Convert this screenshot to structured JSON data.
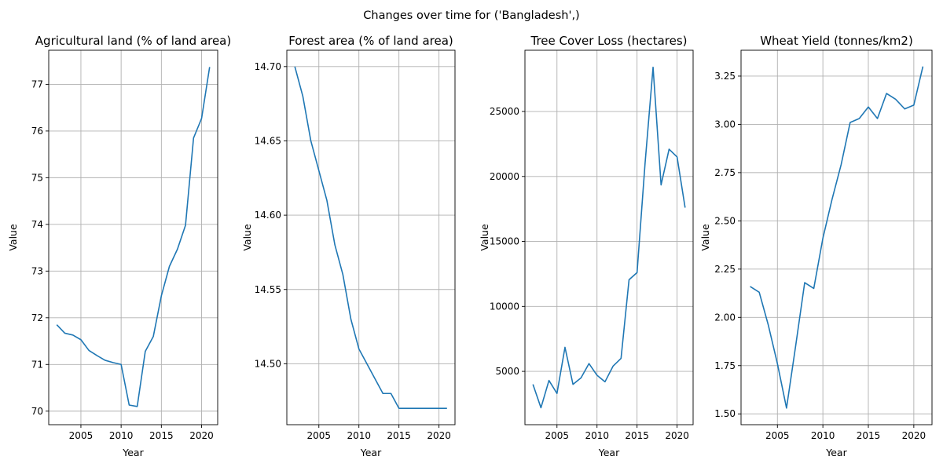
{
  "suptitle": "Changes over time for ('Bangladesh',)",
  "colors": {
    "series": "#1f77b4",
    "grid": "#b0b0b0"
  },
  "chart_data": [
    {
      "type": "line",
      "title": "Agricultural land (% of land area)",
      "xlabel": "Year",
      "ylabel": "Value",
      "grid": true,
      "xlim": [
        2001,
        2022
      ],
      "ylim": [
        69.71,
        77.73
      ],
      "xticks": [
        2005,
        2010,
        2015,
        2020
      ],
      "yticks": [
        70,
        71,
        72,
        73,
        74,
        75,
        76,
        77
      ],
      "yticklabels": [
        "70",
        "71",
        "72",
        "73",
        "74",
        "75",
        "76",
        "77"
      ],
      "series": [
        {
          "x": [
            2002,
            2003,
            2004,
            2005,
            2006,
            2007,
            2008,
            2009,
            2010,
            2011,
            2012,
            2013,
            2014,
            2015,
            2016,
            2017,
            2018,
            2019,
            2020,
            2021
          ],
          "values": [
            71.85,
            71.67,
            71.63,
            71.53,
            71.3,
            71.19,
            71.09,
            71.04,
            71.0,
            70.13,
            70.1,
            71.28,
            71.6,
            72.47,
            73.1,
            73.47,
            73.98,
            75.85,
            76.27,
            77.37
          ]
        }
      ]
    },
    {
      "type": "line",
      "title": "Forest area (% of land area)",
      "xlabel": "Year",
      "ylabel": "Value",
      "grid": true,
      "xlim": [
        2001,
        2022
      ],
      "ylim": [
        14.459,
        14.711
      ],
      "xticks": [
        2005,
        2010,
        2015,
        2020
      ],
      "yticks": [
        14.5,
        14.55,
        14.6,
        14.65,
        14.7
      ],
      "yticklabels": [
        "14.50",
        "14.55",
        "14.60",
        "14.65",
        "14.70"
      ],
      "series": [
        {
          "x": [
            2002,
            2003,
            2004,
            2005,
            2006,
            2007,
            2008,
            2009,
            2010,
            2011,
            2012,
            2013,
            2014,
            2015,
            2016,
            2017,
            2018,
            2019,
            2020,
            2021
          ],
          "values": [
            14.7,
            14.68,
            14.65,
            14.63,
            14.61,
            14.58,
            14.56,
            14.53,
            14.51,
            14.5,
            14.49,
            14.48,
            14.48,
            14.47,
            14.47,
            14.47,
            14.47,
            14.47,
            14.47,
            14.47
          ]
        }
      ]
    },
    {
      "type": "line",
      "title": "Tree Cover Loss (hectares)",
      "xlabel": "Year",
      "ylabel": "Value",
      "grid": true,
      "xlim": [
        2001,
        2022
      ],
      "ylim": [
        897,
        29713
      ],
      "xticks": [
        2005,
        2010,
        2015,
        2020
      ],
      "yticks": [
        5000,
        10000,
        15000,
        20000,
        25000
      ],
      "yticklabels": [
        "5000",
        "10000",
        "15000",
        "20000",
        "25000"
      ],
      "series": [
        {
          "x": [
            2002,
            2003,
            2004,
            2005,
            2006,
            2007,
            2008,
            2009,
            2010,
            2011,
            2012,
            2013,
            2014,
            2015,
            2016,
            2017,
            2018,
            2019,
            2020,
            2021
          ],
          "values": [
            4000,
            2200,
            4300,
            3300,
            6850,
            4000,
            4500,
            5600,
            4700,
            4200,
            5400,
            6000,
            12050,
            12600,
            21000,
            28400,
            19350,
            22100,
            21500,
            17600
          ]
        }
      ]
    },
    {
      "type": "line",
      "title": "Wheat Yield (tonnes/km2)",
      "xlabel": "Year",
      "ylabel": "Value",
      "grid": true,
      "xlim": [
        2001,
        2022
      ],
      "ylim": [
        1.444,
        3.384
      ],
      "xticks": [
        2005,
        2010,
        2015,
        2020
      ],
      "yticks": [
        1.5,
        1.75,
        2.0,
        2.25,
        2.5,
        2.75,
        3.0,
        3.25
      ],
      "yticklabels": [
        "1.50",
        "1.75",
        "2.00",
        "2.25",
        "2.50",
        "2.75",
        "3.00",
        "3.25"
      ],
      "series": [
        {
          "x": [
            2002,
            2003,
            2004,
            2005,
            2006,
            2007,
            2008,
            2009,
            2010,
            2011,
            2012,
            2013,
            2014,
            2015,
            2016,
            2017,
            2018,
            2019,
            2020,
            2021
          ],
          "values": [
            2.16,
            2.13,
            1.96,
            1.76,
            1.53,
            1.85,
            2.18,
            2.15,
            2.41,
            2.61,
            2.79,
            3.01,
            3.03,
            3.09,
            3.03,
            3.16,
            3.13,
            3.08,
            3.1,
            3.3
          ]
        }
      ]
    }
  ]
}
